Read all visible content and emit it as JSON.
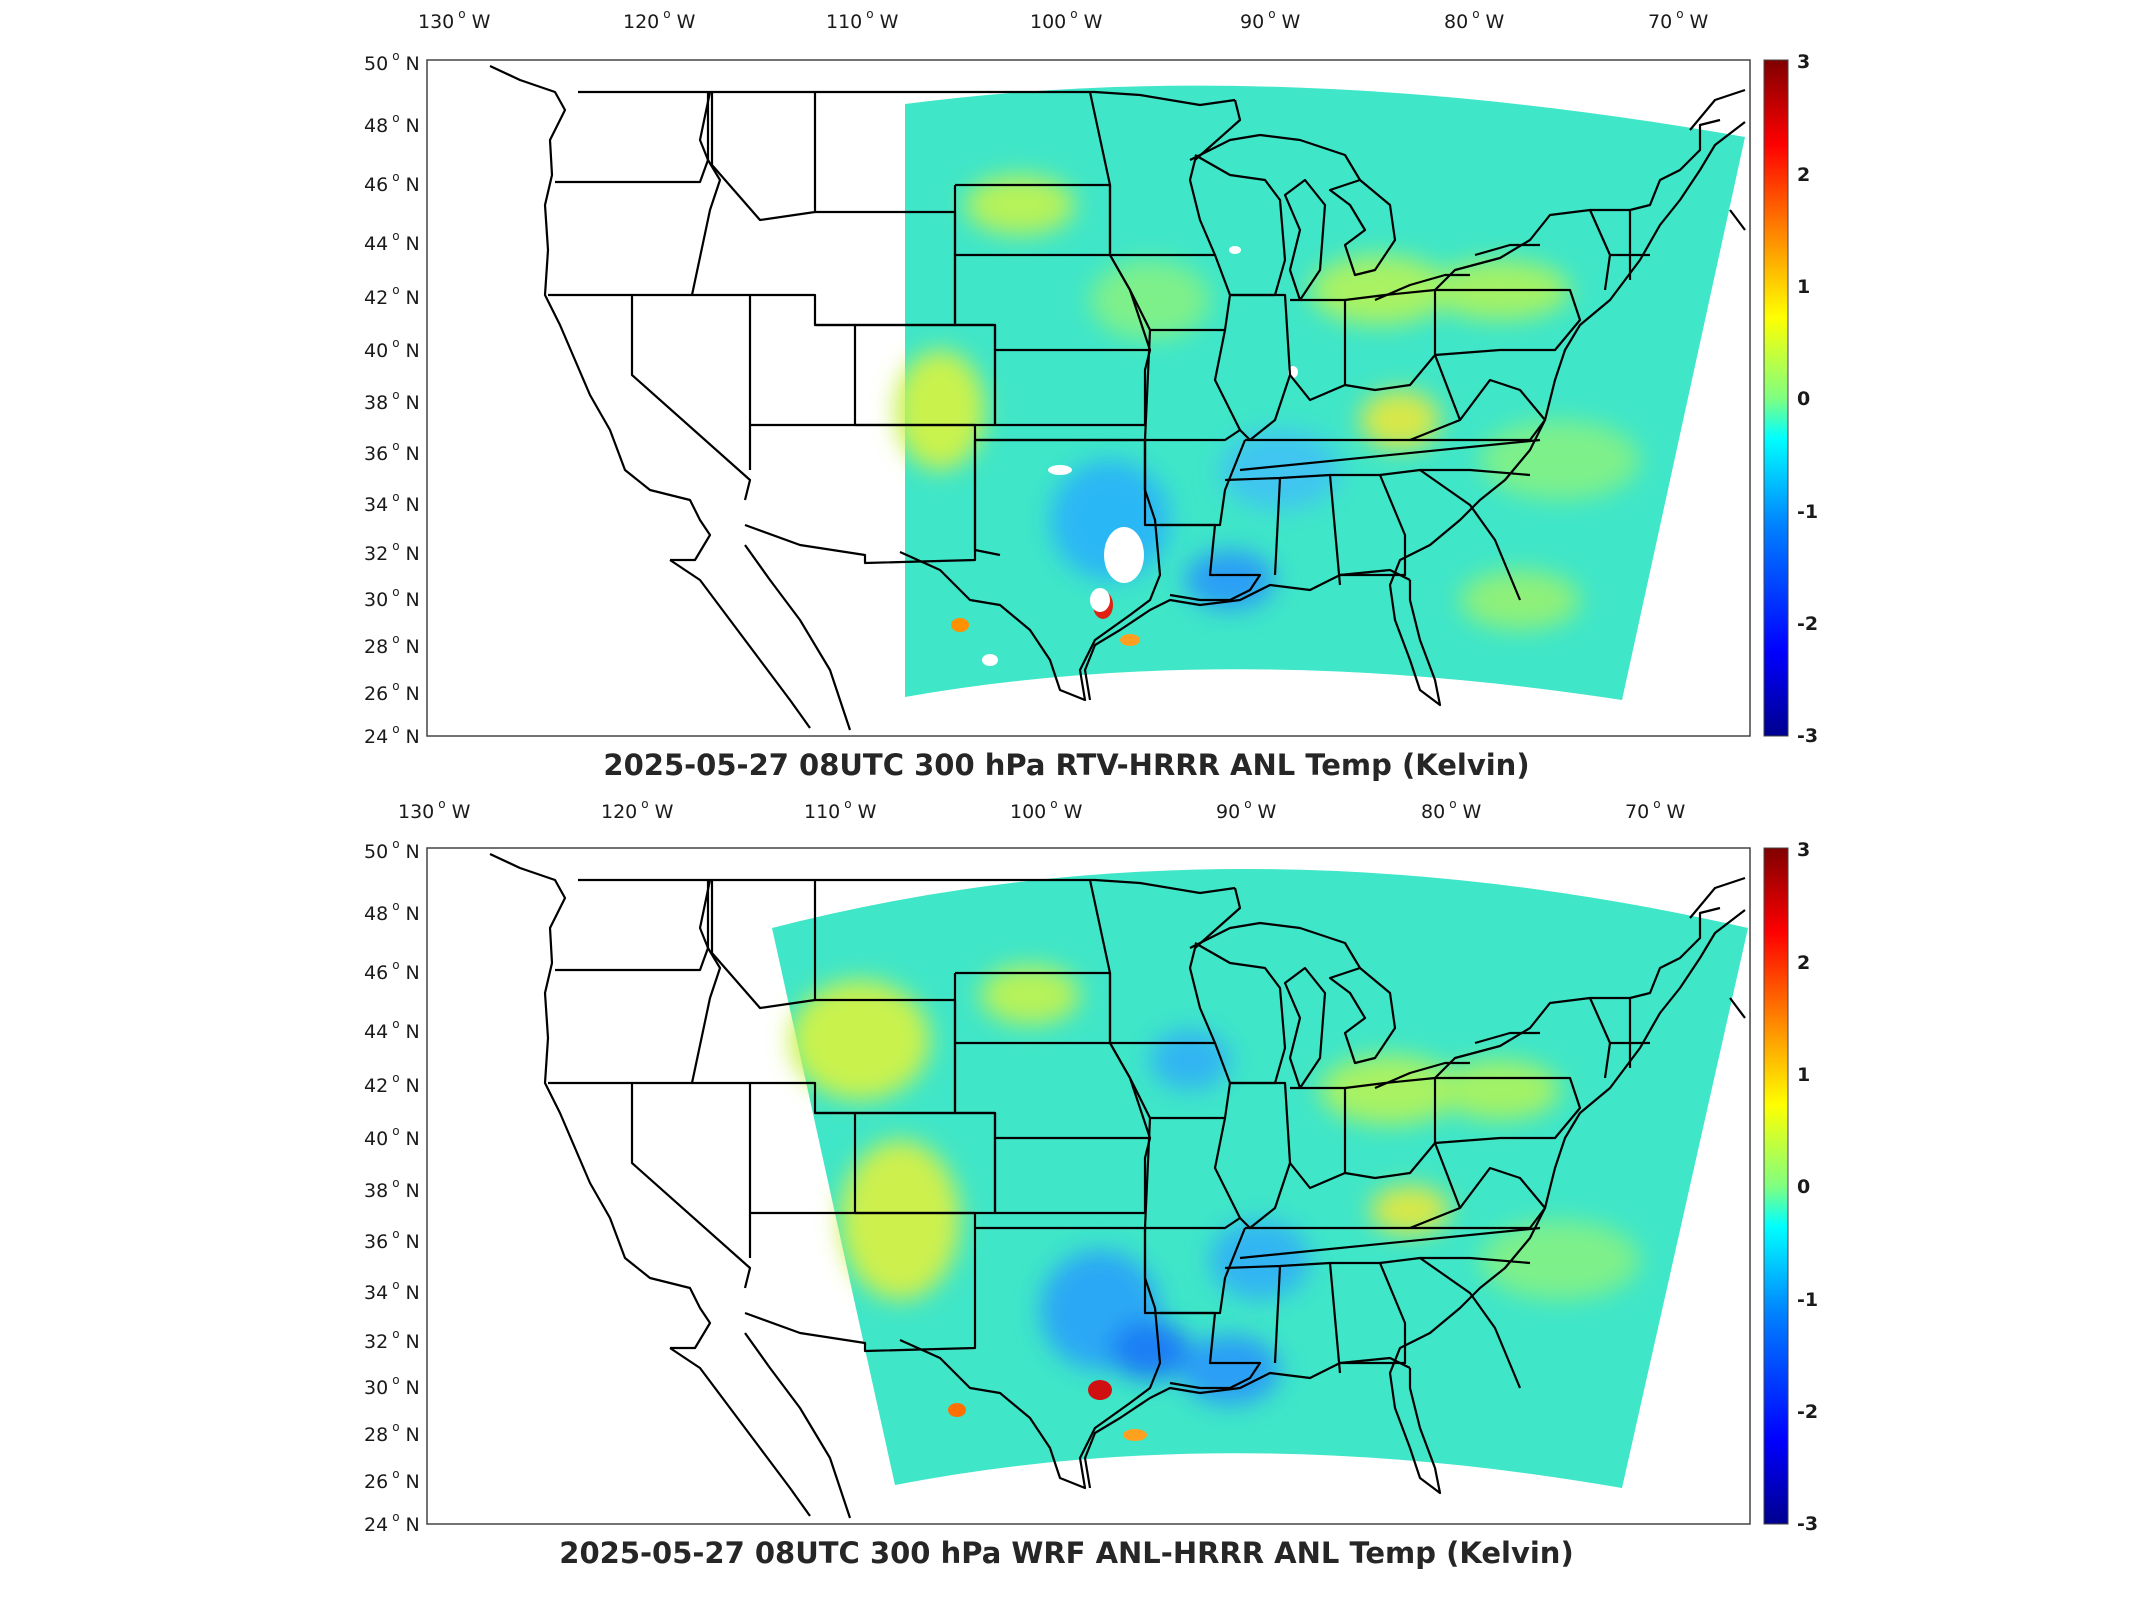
{
  "figure": {
    "lon_ticks": [
      "130",
      "120",
      "110",
      "100",
      "90",
      "80",
      "70"
    ],
    "lon_suffix": "W",
    "lat_ticks": [
      "50",
      "48",
      "46",
      "44",
      "42",
      "40",
      "38",
      "36",
      "34",
      "32",
      "30",
      "28",
      "26",
      "24"
    ],
    "lat_suffix": "N",
    "colorbar_ticks": [
      "3",
      "2",
      "1",
      "0",
      "-1",
      "-2",
      "-3"
    ],
    "colormap": "jet",
    "colorbar_colors": [
      "#00008f",
      "#0000ff",
      "#0080ff",
      "#00ffff",
      "#80ff80",
      "#ffff00",
      "#ff8000",
      "#ff0000",
      "#800000"
    ],
    "land_outline_color": "#000000"
  },
  "panels": [
    {
      "title": "2025-05-27 08UTC 300 hPa RTV-HRRR ANL Temp (Kelvin)",
      "field_range": "partial",
      "missing_areas": "white gaps over central Texas and southern plains"
    },
    {
      "title": "2025-05-27 08UTC 300 hPa WRF ANL-HRRR ANL Temp (Kelvin)",
      "field_range": "full",
      "missing_areas": ""
    }
  ]
}
